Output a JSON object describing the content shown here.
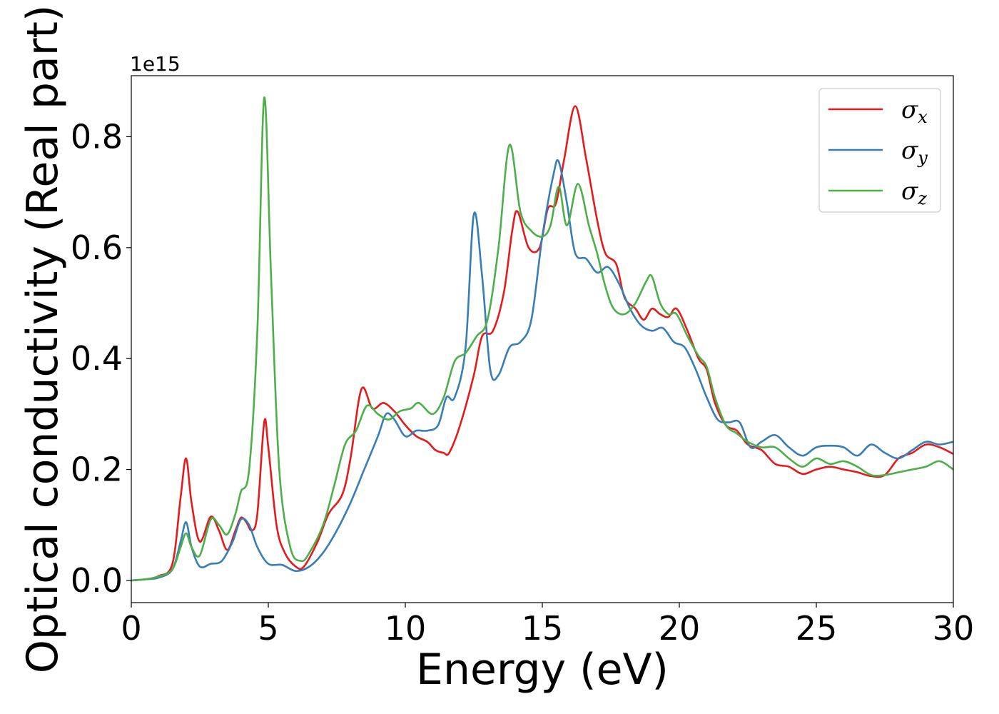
{
  "chart_data": {
    "type": "line",
    "xlabel": "Energy (eV)",
    "ylabel": "Optical conductivity (Real part)",
    "y_offset_label": "1e15",
    "xlim": [
      0,
      30
    ],
    "ylim": [
      -0.04,
      0.91
    ],
    "x_ticks": [
      0,
      5,
      10,
      15,
      20,
      25,
      30
    ],
    "x_tick_labels": [
      "0",
      "5",
      "10",
      "15",
      "20",
      "25",
      "30"
    ],
    "y_ticks": [
      0.0,
      0.2,
      0.4,
      0.6,
      0.8
    ],
    "y_tick_labels": [
      "0.0",
      "0.2",
      "0.4",
      "0.6",
      "0.8"
    ],
    "grid": false,
    "legend_position": "top-right",
    "series": [
      {
        "name": "σx",
        "legend_symbol": "σ",
        "legend_subscript": "x",
        "color": "#e41a1c",
        "points": [
          [
            0,
            0
          ],
          [
            0.5,
            0.002
          ],
          [
            1,
            0.008
          ],
          [
            1.5,
            0.03
          ],
          [
            1.8,
            0.15
          ],
          [
            2.0,
            0.22
          ],
          [
            2.2,
            0.14
          ],
          [
            2.5,
            0.07
          ],
          [
            2.9,
            0.115
          ],
          [
            3.2,
            0.09
          ],
          [
            3.5,
            0.055
          ],
          [
            3.8,
            0.09
          ],
          [
            4.0,
            0.113
          ],
          [
            4.2,
            0.105
          ],
          [
            4.4,
            0.09
          ],
          [
            4.6,
            0.12
          ],
          [
            4.85,
            0.285
          ],
          [
            5.0,
            0.24
          ],
          [
            5.3,
            0.1
          ],
          [
            5.6,
            0.05
          ],
          [
            6.0,
            0.025
          ],
          [
            6.3,
            0.025
          ],
          [
            6.8,
            0.07
          ],
          [
            7.2,
            0.12
          ],
          [
            7.7,
            0.155
          ],
          [
            8.0,
            0.22
          ],
          [
            8.4,
            0.345
          ],
          [
            8.8,
            0.31
          ],
          [
            9.2,
            0.32
          ],
          [
            9.6,
            0.305
          ],
          [
            10.0,
            0.28
          ],
          [
            10.4,
            0.26
          ],
          [
            10.8,
            0.25
          ],
          [
            11.1,
            0.235
          ],
          [
            11.4,
            0.23
          ],
          [
            11.6,
            0.23
          ],
          [
            12.0,
            0.28
          ],
          [
            12.5,
            0.37
          ],
          [
            12.8,
            0.44
          ],
          [
            13.2,
            0.45
          ],
          [
            13.6,
            0.52
          ],
          [
            13.9,
            0.63
          ],
          [
            14.1,
            0.665
          ],
          [
            14.5,
            0.6
          ],
          [
            14.9,
            0.6
          ],
          [
            15.2,
            0.67
          ],
          [
            15.5,
            0.68
          ],
          [
            15.8,
            0.76
          ],
          [
            16.2,
            0.855
          ],
          [
            16.6,
            0.76
          ],
          [
            17.0,
            0.65
          ],
          [
            17.3,
            0.59
          ],
          [
            17.7,
            0.57
          ],
          [
            18.0,
            0.51
          ],
          [
            18.4,
            0.49
          ],
          [
            18.7,
            0.47
          ],
          [
            19.0,
            0.49
          ],
          [
            19.3,
            0.48
          ],
          [
            19.6,
            0.475
          ],
          [
            19.9,
            0.49
          ],
          [
            20.3,
            0.45
          ],
          [
            20.7,
            0.4
          ],
          [
            21.0,
            0.38
          ],
          [
            21.3,
            0.32
          ],
          [
            21.7,
            0.28
          ],
          [
            22.1,
            0.27
          ],
          [
            22.5,
            0.245
          ],
          [
            23.0,
            0.235
          ],
          [
            23.5,
            0.21
          ],
          [
            24.0,
            0.205
          ],
          [
            24.5,
            0.192
          ],
          [
            25.0,
            0.2
          ],
          [
            25.5,
            0.205
          ],
          [
            26.0,
            0.2
          ],
          [
            26.5,
            0.195
          ],
          [
            27.0,
            0.188
          ],
          [
            27.5,
            0.19
          ],
          [
            28.0,
            0.22
          ],
          [
            28.5,
            0.23
          ],
          [
            29.0,
            0.245
          ],
          [
            29.5,
            0.24
          ],
          [
            30.0,
            0.228
          ]
        ]
      },
      {
        "name": "σy",
        "legend_symbol": "σ",
        "legend_subscript": "y",
        "color": "#377eb8",
        "points": [
          [
            0,
            0
          ],
          [
            0.5,
            0.002
          ],
          [
            1,
            0.005
          ],
          [
            1.5,
            0.02
          ],
          [
            1.8,
            0.07
          ],
          [
            2.0,
            0.105
          ],
          [
            2.2,
            0.06
          ],
          [
            2.5,
            0.025
          ],
          [
            2.9,
            0.03
          ],
          [
            3.3,
            0.035
          ],
          [
            3.7,
            0.07
          ],
          [
            4.0,
            0.11
          ],
          [
            4.3,
            0.1
          ],
          [
            4.6,
            0.06
          ],
          [
            5.0,
            0.03
          ],
          [
            5.5,
            0.028
          ],
          [
            6.0,
            0.017
          ],
          [
            6.5,
            0.025
          ],
          [
            7.0,
            0.05
          ],
          [
            7.5,
            0.09
          ],
          [
            8.0,
            0.14
          ],
          [
            8.5,
            0.2
          ],
          [
            9.0,
            0.26
          ],
          [
            9.3,
            0.3
          ],
          [
            9.6,
            0.29
          ],
          [
            10.0,
            0.26
          ],
          [
            10.4,
            0.27
          ],
          [
            10.8,
            0.27
          ],
          [
            11.2,
            0.28
          ],
          [
            11.5,
            0.33
          ],
          [
            11.8,
            0.33
          ],
          [
            12.2,
            0.42
          ],
          [
            12.5,
            0.66
          ],
          [
            12.8,
            0.55
          ],
          [
            13.1,
            0.38
          ],
          [
            13.4,
            0.37
          ],
          [
            13.8,
            0.42
          ],
          [
            14.2,
            0.43
          ],
          [
            14.6,
            0.47
          ],
          [
            15.0,
            0.62
          ],
          [
            15.4,
            0.73
          ],
          [
            15.6,
            0.755
          ],
          [
            15.9,
            0.68
          ],
          [
            16.2,
            0.59
          ],
          [
            16.6,
            0.58
          ],
          [
            17.0,
            0.555
          ],
          [
            17.4,
            0.565
          ],
          [
            17.8,
            0.535
          ],
          [
            18.2,
            0.49
          ],
          [
            18.6,
            0.46
          ],
          [
            19.0,
            0.45
          ],
          [
            19.4,
            0.455
          ],
          [
            19.8,
            0.43
          ],
          [
            20.2,
            0.42
          ],
          [
            20.6,
            0.38
          ],
          [
            21.0,
            0.33
          ],
          [
            21.4,
            0.29
          ],
          [
            21.8,
            0.285
          ],
          [
            22.2,
            0.285
          ],
          [
            22.6,
            0.24
          ],
          [
            23.0,
            0.25
          ],
          [
            23.5,
            0.262
          ],
          [
            24.0,
            0.24
          ],
          [
            24.5,
            0.225
          ],
          [
            25.0,
            0.24
          ],
          [
            25.5,
            0.243
          ],
          [
            26.0,
            0.24
          ],
          [
            26.5,
            0.225
          ],
          [
            27.0,
            0.245
          ],
          [
            27.5,
            0.23
          ],
          [
            28.0,
            0.22
          ],
          [
            28.5,
            0.235
          ],
          [
            29.0,
            0.25
          ],
          [
            29.5,
            0.245
          ],
          [
            30.0,
            0.25
          ]
        ]
      },
      {
        "name": "σz",
        "legend_symbol": "σ",
        "legend_subscript": "z",
        "color": "#4daf4a",
        "points": [
          [
            0,
            0
          ],
          [
            0.5,
            0.002
          ],
          [
            1,
            0.007
          ],
          [
            1.5,
            0.02
          ],
          [
            1.8,
            0.06
          ],
          [
            2.0,
            0.085
          ],
          [
            2.2,
            0.06
          ],
          [
            2.5,
            0.045
          ],
          [
            2.9,
            0.11
          ],
          [
            3.2,
            0.1
          ],
          [
            3.5,
            0.083
          ],
          [
            3.8,
            0.12
          ],
          [
            4.0,
            0.16
          ],
          [
            4.3,
            0.2
          ],
          [
            4.6,
            0.45
          ],
          [
            4.85,
            0.87
          ],
          [
            5.1,
            0.55
          ],
          [
            5.4,
            0.2
          ],
          [
            5.8,
            0.06
          ],
          [
            6.2,
            0.035
          ],
          [
            6.5,
            0.05
          ],
          [
            7.0,
            0.1
          ],
          [
            7.4,
            0.17
          ],
          [
            7.8,
            0.245
          ],
          [
            8.2,
            0.27
          ],
          [
            8.6,
            0.315
          ],
          [
            9.0,
            0.3
          ],
          [
            9.4,
            0.29
          ],
          [
            9.8,
            0.305
          ],
          [
            10.2,
            0.31
          ],
          [
            10.5,
            0.32
          ],
          [
            11.0,
            0.3
          ],
          [
            11.4,
            0.33
          ],
          [
            11.8,
            0.395
          ],
          [
            12.2,
            0.41
          ],
          [
            12.6,
            0.44
          ],
          [
            13.0,
            0.47
          ],
          [
            13.4,
            0.6
          ],
          [
            13.8,
            0.785
          ],
          [
            14.2,
            0.665
          ],
          [
            14.6,
            0.63
          ],
          [
            15.0,
            0.62
          ],
          [
            15.3,
            0.64
          ],
          [
            15.6,
            0.71
          ],
          [
            15.9,
            0.64
          ],
          [
            16.3,
            0.715
          ],
          [
            16.7,
            0.64
          ],
          [
            17.0,
            0.59
          ],
          [
            17.3,
            0.53
          ],
          [
            17.6,
            0.49
          ],
          [
            18.0,
            0.48
          ],
          [
            18.4,
            0.5
          ],
          [
            18.8,
            0.54
          ],
          [
            19.0,
            0.548
          ],
          [
            19.3,
            0.5
          ],
          [
            19.6,
            0.48
          ],
          [
            19.9,
            0.48
          ],
          [
            20.3,
            0.44
          ],
          [
            20.7,
            0.405
          ],
          [
            21.0,
            0.385
          ],
          [
            21.3,
            0.33
          ],
          [
            21.7,
            0.28
          ],
          [
            22.1,
            0.265
          ],
          [
            22.5,
            0.25
          ],
          [
            23.0,
            0.24
          ],
          [
            23.5,
            0.24
          ],
          [
            24.0,
            0.22
          ],
          [
            24.5,
            0.205
          ],
          [
            25.0,
            0.22
          ],
          [
            25.5,
            0.21
          ],
          [
            26.0,
            0.215
          ],
          [
            26.5,
            0.205
          ],
          [
            27.0,
            0.19
          ],
          [
            27.5,
            0.19
          ],
          [
            28.0,
            0.195
          ],
          [
            28.5,
            0.2
          ],
          [
            29.0,
            0.205
          ],
          [
            29.5,
            0.215
          ],
          [
            30.0,
            0.2
          ]
        ]
      }
    ]
  }
}
